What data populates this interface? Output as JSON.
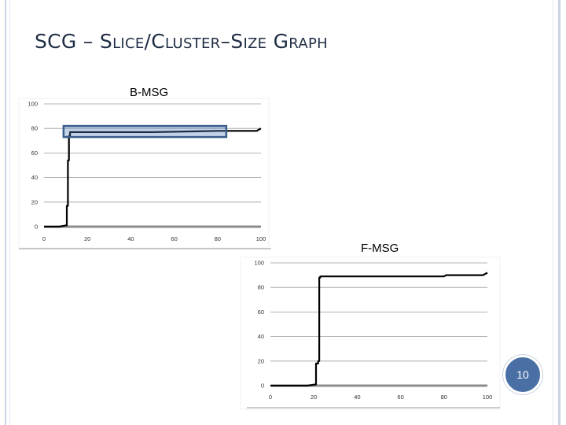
{
  "slide": {
    "title_parts": [
      {
        "text": "SCG – S",
        "small": false
      },
      {
        "text": "LICE",
        "small": true
      },
      {
        "text": "/C",
        "small": false
      },
      {
        "text": "LUSTER",
        "small": true
      },
      {
        "text": "–S",
        "small": false
      },
      {
        "text": "IZE",
        "small": true
      },
      {
        "text": " G",
        "small": false
      },
      {
        "text": "RAPH",
        "small": true
      }
    ],
    "page_number": "10",
    "colors": {
      "accent": "#4a6fa5",
      "border": "#c9d3e3",
      "title": "#1f2d44",
      "highlight": "#4f81bd"
    }
  },
  "chart_data": [
    {
      "type": "line",
      "title": "B-MSG",
      "xlabel": "",
      "ylabel": "",
      "xlim": [
        0,
        100
      ],
      "ylim": [
        0,
        100
      ],
      "x_ticks": [
        "0",
        "20",
        "40",
        "60",
        "80",
        "100"
      ],
      "y_ticks": [
        "0",
        "20",
        "40",
        "60",
        "80",
        "100"
      ],
      "grid": true,
      "legend": "none",
      "series": [
        {
          "x": [
            0,
            7,
            10,
            10.5,
            10.5,
            11,
            11,
            11.5,
            11.5,
            12,
            12,
            50,
            80,
            98,
            100
          ],
          "y": [
            0,
            0,
            1,
            1,
            17,
            17,
            54,
            54,
            74,
            74,
            77,
            77,
            78,
            78,
            80
          ]
        }
      ],
      "highlight": {
        "x_range": [
          9,
          84
        ],
        "y_range": [
          73,
          82
        ]
      }
    },
    {
      "type": "line",
      "title": "F-MSG",
      "xlabel": "",
      "ylabel": "",
      "xlim": [
        0,
        100
      ],
      "ylim": [
        0,
        100
      ],
      "x_ticks": [
        "0",
        "20",
        "40",
        "60",
        "80",
        "100"
      ],
      "y_ticks": [
        "0",
        "20",
        "40",
        "60",
        "80",
        "100"
      ],
      "grid": true,
      "legend": "none",
      "series": [
        {
          "x": [
            0,
            17,
            21,
            21,
            22,
            22,
            22.5,
            22.5,
            23,
            23,
            40,
            60,
            80,
            81,
            98,
            100
          ],
          "y": [
            0,
            0,
            1,
            18,
            18,
            20,
            20,
            88,
            88,
            89,
            89,
            89,
            89,
            90,
            90,
            92
          ]
        }
      ]
    }
  ]
}
